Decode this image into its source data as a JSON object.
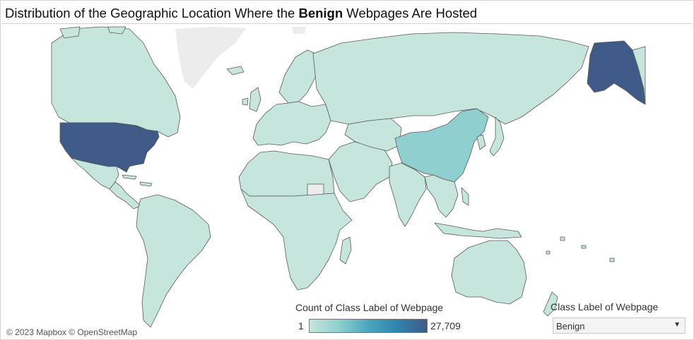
{
  "title": {
    "prefix": "Distribution of the Geographic Location Where the ",
    "emphasis": "Benign",
    "suffix": " Webpages Are Hosted"
  },
  "map": {
    "attribution": "© 2023 Mapbox © OpenStreetMap",
    "colors": {
      "no_data": "#ececec",
      "low": "#c6e5dc",
      "mid": "#8fcfcf",
      "high": "#3f5a87",
      "border": "#5a5a5a"
    },
    "highlighted_regions": [
      {
        "name": "United States",
        "level": "max"
      },
      {
        "name": "China",
        "level": "mid"
      }
    ]
  },
  "legend": {
    "title": "Count of Class Label of Webpage",
    "min_label": "1",
    "max_label": "27,709",
    "gradient": [
      "#c6e5dc",
      "#8fcfcf",
      "#4ba6be",
      "#2f84ad",
      "#3f5a87"
    ]
  },
  "filter": {
    "title": "Class Label of Webpage",
    "selected": "Benign"
  }
}
